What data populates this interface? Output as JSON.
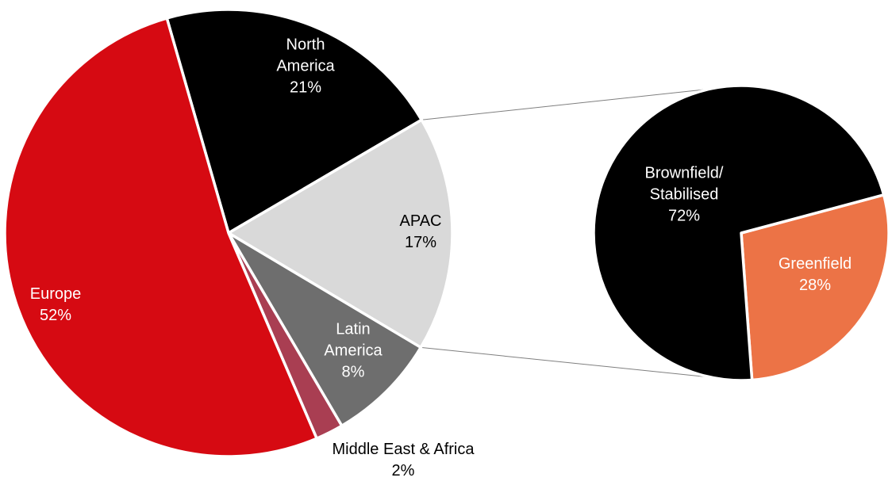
{
  "background_color": "#FFFFFF",
  "connector": {
    "color": "#7F7F7F",
    "width": 1,
    "description": "series lines linking the APAC slice edges of the main pie to the top and bottom of the secondary pie"
  },
  "chart_data": [
    {
      "type": "pie",
      "name": "regional-breakdown-pie",
      "legend": "none",
      "center": [
        288,
        294
      ],
      "radius": 282,
      "start_angle_deg": -16,
      "slice_border_color": "#FFFFFF",
      "slices": [
        {
          "name": "North America",
          "pct": 21,
          "color": "#000000",
          "label_color": "#FFFFFF",
          "label_lines": [
            "North",
            "America",
            "21%"
          ]
        },
        {
          "name": "APAC",
          "pct": 17,
          "color": "#D9D9D9",
          "label_color": "#000000",
          "label_lines": [
            "APAC",
            "17%"
          ]
        },
        {
          "name": "Latin America",
          "pct": 8,
          "color": "#6E6E6E",
          "label_color": "#FFFFFF",
          "label_lines": [
            "Latin",
            "America",
            "8%"
          ]
        },
        {
          "name": "Middle East & Africa",
          "pct": 2,
          "color": "#A93E52",
          "label_color": "#000000",
          "label_lines": [
            "Middle East & Africa",
            "2%"
          ]
        },
        {
          "name": "Europe",
          "pct": 52,
          "color": "#D60A12",
          "label_color": "#FFFFFF",
          "label_lines": [
            "Europe",
            "52%"
          ]
        }
      ]
    },
    {
      "type": "pie",
      "name": "field-type-breakdown-pie",
      "legend": "none",
      "center": [
        934,
        294
      ],
      "radius": 186,
      "start_angle_deg": 75,
      "slice_border_color": "#FFFFFF",
      "slices": [
        {
          "name": "Greenfield",
          "pct": 28,
          "color": "#EC7346",
          "label_color": "#FFFFFF",
          "label_lines": [
            "Greenfield",
            "28%"
          ]
        },
        {
          "name": "Brownfield/Stabilised",
          "pct": 72,
          "color": "#000000",
          "label_color": "#FFFFFF",
          "label_lines": [
            "Brownfield/",
            "Stabilised",
            "72%"
          ]
        }
      ]
    }
  ]
}
